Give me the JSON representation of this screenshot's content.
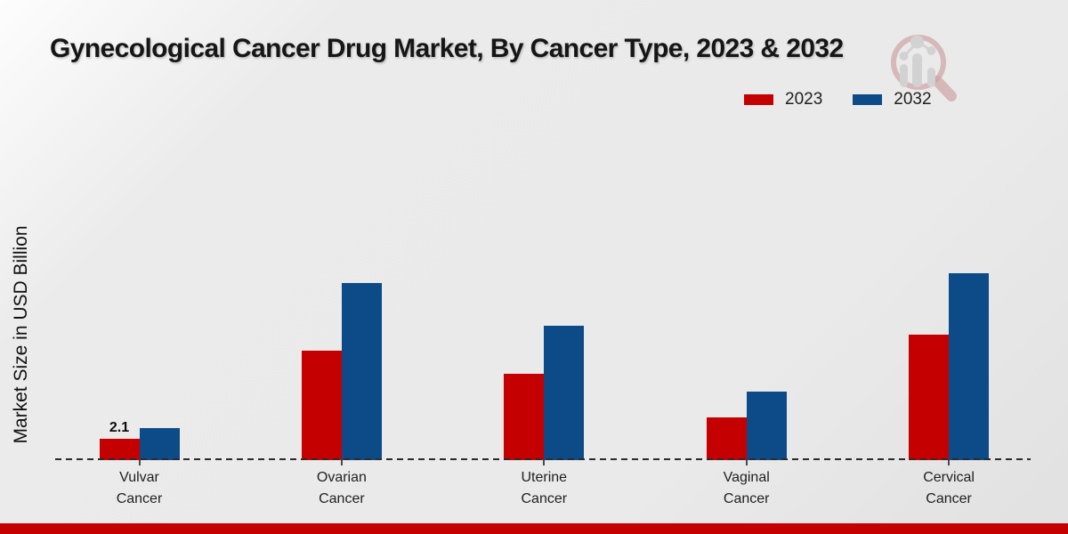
{
  "title": "Gynecological Cancer Drug Market, By Cancer Type, 2023 & 2032",
  "y_axis_label": "Market Size in USD Billion",
  "legend": {
    "items": [
      {
        "label": "2023",
        "color": "#c40000"
      },
      {
        "label": "2032",
        "color": "#0c4b88"
      }
    ]
  },
  "chart_data": {
    "type": "bar",
    "title": "Gynecological Cancer Drug Market, By Cancer Type, 2023 & 2032",
    "xlabel": "",
    "ylabel": "Market Size in USD Billion",
    "categories": [
      "Vulvar Cancer",
      "Ovarian Cancer",
      "Uterine Cancer",
      "Vaginal Cancer",
      "Cervical Cancer"
    ],
    "series": [
      {
        "name": "2023",
        "color": "#c40000",
        "values": [
          2.1,
          11.2,
          8.8,
          4.3,
          12.8
        ]
      },
      {
        "name": "2032",
        "color": "#0c4b88",
        "values": [
          3.2,
          18.2,
          13.8,
          7.0,
          19.2
        ]
      }
    ],
    "value_labels": [
      {
        "series_index": 0,
        "category_index": 0,
        "text": "2.1"
      }
    ],
    "ylim": [
      0,
      21
    ],
    "grid": false,
    "legend_position": "top-right",
    "baseline_style": "dashed",
    "baseline_color": "#2b2b2b",
    "units": "USD Billion"
  },
  "watermark": {
    "name": "market-research-magnifier-logo"
  },
  "footer": {
    "color": "#c40000"
  }
}
